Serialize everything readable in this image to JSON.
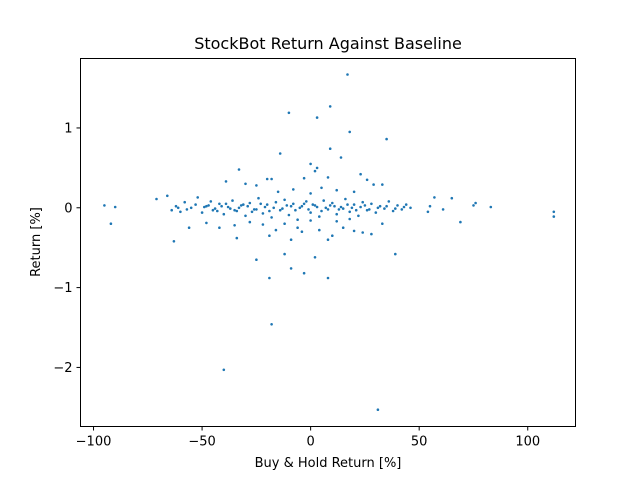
{
  "chart_data": {
    "type": "scatter",
    "title": "StockBot Return Against Baseline",
    "xlabel": "Buy & Hold Return [%]",
    "ylabel": "Return [%]",
    "xlim": [
      -106,
      122
    ],
    "ylim": [
      -2.74,
      1.87
    ],
    "xticks": [
      -100,
      -50,
      0,
      50,
      100
    ],
    "yticks": [
      -2,
      -1,
      0,
      1
    ],
    "xtick_labels": [
      "−100",
      "−50",
      "0",
      "50",
      "100"
    ],
    "ytick_labels": [
      "−2",
      "−1",
      "0",
      "1"
    ],
    "grid": false,
    "marker_color": "#1f77b4",
    "points": [
      {
        "x": 17,
        "y": 1.67
      },
      {
        "x": 9,
        "y": 1.27
      },
      {
        "x": -10,
        "y": 1.19
      },
      {
        "x": 3,
        "y": 1.13
      },
      {
        "x": 18,
        "y": 0.95
      },
      {
        "x": 35,
        "y": 0.86
      },
      {
        "x": 9,
        "y": 0.74
      },
      {
        "x": -14,
        "y": 0.68
      },
      {
        "x": 14,
        "y": 0.63
      },
      {
        "x": 0,
        "y": 0.55
      },
      {
        "x": 3,
        "y": 0.5
      },
      {
        "x": 2,
        "y": 0.46
      },
      {
        "x": -33,
        "y": 0.48
      },
      {
        "x": 23,
        "y": 0.42
      },
      {
        "x": -20,
        "y": 0.36
      },
      {
        "x": -18,
        "y": 0.36
      },
      {
        "x": 26,
        "y": 0.35
      },
      {
        "x": -39,
        "y": 0.33
      },
      {
        "x": 8,
        "y": 0.38
      },
      {
        "x": -3,
        "y": 0.37
      },
      {
        "x": 29,
        "y": 0.29
      },
      {
        "x": 33,
        "y": 0.29
      },
      {
        "x": -25,
        "y": 0.28
      },
      {
        "x": -30,
        "y": 0.3
      },
      {
        "x": -8,
        "y": 0.23
      },
      {
        "x": 5,
        "y": 0.25
      },
      {
        "x": 12,
        "y": 0.22
      },
      {
        "x": 20,
        "y": 0.2
      },
      {
        "x": -15,
        "y": 0.2
      },
      {
        "x": 0,
        "y": 0.18
      },
      {
        "x": -95,
        "y": 0.03
      },
      {
        "x": -90,
        "y": 0.01
      },
      {
        "x": -92,
        "y": -0.2
      },
      {
        "x": -71,
        "y": 0.11
      },
      {
        "x": -66,
        "y": 0.15
      },
      {
        "x": -64,
        "y": -0.03
      },
      {
        "x": -62,
        "y": 0.02
      },
      {
        "x": -60,
        "y": -0.05
      },
      {
        "x": -58,
        "y": 0.07
      },
      {
        "x": -55,
        "y": 0.0
      },
      {
        "x": -52,
        "y": 0.13
      },
      {
        "x": -50,
        "y": -0.06
      },
      {
        "x": -48,
        "y": 0.02
      },
      {
        "x": -46,
        "y": 0.08
      },
      {
        "x": -44,
        "y": -0.01
      },
      {
        "x": -42,
        "y": 0.05
      },
      {
        "x": -40,
        "y": -0.08
      },
      {
        "x": -38,
        "y": 0.01
      },
      {
        "x": -36,
        "y": 0.09
      },
      {
        "x": -34,
        "y": -0.04
      },
      {
        "x": -32,
        "y": 0.03
      },
      {
        "x": -30,
        "y": -0.1
      },
      {
        "x": -28,
        "y": 0.06
      },
      {
        "x": -26,
        "y": -0.02
      },
      {
        "x": -24,
        "y": 0.12
      },
      {
        "x": -22,
        "y": -0.07
      },
      {
        "x": -20,
        "y": 0.04
      },
      {
        "x": -18,
        "y": -0.12
      },
      {
        "x": -16,
        "y": 0.07
      },
      {
        "x": -14,
        "y": -0.03
      },
      {
        "x": -12,
        "y": 0.1
      },
      {
        "x": -10,
        "y": -0.09
      },
      {
        "x": -8,
        "y": 0.05
      },
      {
        "x": -6,
        "y": -0.15
      },
      {
        "x": -4,
        "y": 0.02
      },
      {
        "x": -2,
        "y": 0.08
      },
      {
        "x": 0,
        "y": -0.06
      },
      {
        "x": 2,
        "y": 0.03
      },
      {
        "x": 4,
        "y": -0.11
      },
      {
        "x": 6,
        "y": 0.09
      },
      {
        "x": 8,
        "y": -0.02
      },
      {
        "x": 10,
        "y": 0.06
      },
      {
        "x": 12,
        "y": -0.08
      },
      {
        "x": 14,
        "y": 0.01
      },
      {
        "x": 16,
        "y": 0.11
      },
      {
        "x": 18,
        "y": -0.05
      },
      {
        "x": 20,
        "y": 0.04
      },
      {
        "x": 22,
        "y": -0.1
      },
      {
        "x": 24,
        "y": 0.07
      },
      {
        "x": 26,
        "y": -0.03
      },
      {
        "x": 28,
        "y": 0.05
      },
      {
        "x": 30,
        "y": -0.06
      },
      {
        "x": 32,
        "y": 0.02
      },
      {
        "x": 34,
        "y": -0.01
      },
      {
        "x": 36,
        "y": 0.08
      },
      {
        "x": 38,
        "y": -0.04
      },
      {
        "x": 40,
        "y": 0.03
      },
      {
        "x": 42,
        "y": -0.02
      },
      {
        "x": 44,
        "y": 0.04
      },
      {
        "x": 46,
        "y": 0.0
      },
      {
        "x": -61,
        "y": 0.0
      },
      {
        "x": -57,
        "y": -0.02
      },
      {
        "x": -53,
        "y": 0.04
      },
      {
        "x": -49,
        "y": 0.01
      },
      {
        "x": -45,
        "y": -0.03
      },
      {
        "x": -41,
        "y": 0.02
      },
      {
        "x": -37,
        "y": -0.01
      },
      {
        "x": -33,
        "y": 0.0
      },
      {
        "x": -29,
        "y": 0.02
      },
      {
        "x": -25,
        "y": -0.02
      },
      {
        "x": -21,
        "y": 0.01
      },
      {
        "x": -17,
        "y": 0.0
      },
      {
        "x": -13,
        "y": -0.01
      },
      {
        "x": -9,
        "y": 0.02
      },
      {
        "x": -5,
        "y": 0.0
      },
      {
        "x": -1,
        "y": -0.02
      },
      {
        "x": 3,
        "y": 0.01
      },
      {
        "x": 7,
        "y": 0.0
      },
      {
        "x": 11,
        "y": 0.02
      },
      {
        "x": 15,
        "y": -0.01
      },
      {
        "x": 19,
        "y": 0.0
      },
      {
        "x": 23,
        "y": 0.01
      },
      {
        "x": 27,
        "y": -0.02
      },
      {
        "x": 31,
        "y": 0.0
      },
      {
        "x": 35,
        "y": 0.02
      },
      {
        "x": 39,
        "y": -0.01
      },
      {
        "x": 43,
        "y": 0.01
      },
      {
        "x": -11,
        "y": 0.03
      },
      {
        "x": -7,
        "y": -0.03
      },
      {
        "x": 1,
        "y": 0.04
      },
      {
        "x": 5,
        "y": -0.04
      },
      {
        "x": 9,
        "y": 0.03
      },
      {
        "x": 13,
        "y": -0.02
      },
      {
        "x": -3,
        "y": 0.05
      },
      {
        "x": 17,
        "y": 0.04
      },
      {
        "x": 21,
        "y": -0.03
      },
      {
        "x": 25,
        "y": 0.03
      },
      {
        "x": -19,
        "y": -0.04
      },
      {
        "x": -23,
        "y": 0.05
      },
      {
        "x": -27,
        "y": -0.05
      },
      {
        "x": -31,
        "y": 0.04
      },
      {
        "x": -35,
        "y": -0.03
      },
      {
        "x": -39,
        "y": 0.05
      },
      {
        "x": -43,
        "y": -0.04
      },
      {
        "x": -47,
        "y": 0.03
      },
      {
        "x": -12,
        "y": -0.2
      },
      {
        "x": -6,
        "y": -0.25
      },
      {
        "x": -4,
        "y": -0.3
      },
      {
        "x": -16,
        "y": -0.28
      },
      {
        "x": -22,
        "y": -0.21
      },
      {
        "x": -28,
        "y": -0.18
      },
      {
        "x": -35,
        "y": -0.22
      },
      {
        "x": -42,
        "y": -0.25
      },
      {
        "x": -48,
        "y": -0.19
      },
      {
        "x": -56,
        "y": -0.25
      },
      {
        "x": -63,
        "y": -0.42
      },
      {
        "x": -34,
        "y": -0.38
      },
      {
        "x": -19,
        "y": -0.35
      },
      {
        "x": -9,
        "y": -0.4
      },
      {
        "x": 4,
        "y": -0.28
      },
      {
        "x": 8,
        "y": -0.4
      },
      {
        "x": 10,
        "y": -0.35
      },
      {
        "x": 15,
        "y": -0.25
      },
      {
        "x": 20,
        "y": -0.29
      },
      {
        "x": 24,
        "y": -0.31
      },
      {
        "x": 28,
        "y": -0.33
      },
      {
        "x": 33,
        "y": -0.2
      },
      {
        "x": 12,
        "y": -0.17
      },
      {
        "x": 18,
        "y": -0.14
      },
      {
        "x": 0,
        "y": -0.16
      },
      {
        "x": -25,
        "y": -0.65
      },
      {
        "x": -12,
        "y": -0.58
      },
      {
        "x": 2,
        "y": -0.62
      },
      {
        "x": -9,
        "y": -0.76
      },
      {
        "x": -3,
        "y": -0.82
      },
      {
        "x": -19,
        "y": -0.88
      },
      {
        "x": 8,
        "y": -0.88
      },
      {
        "x": 39,
        "y": -0.58
      },
      {
        "x": -18,
        "y": -1.46
      },
      {
        "x": -40,
        "y": -2.03
      },
      {
        "x": 31,
        "y": -2.53
      },
      {
        "x": 57,
        "y": 0.13
      },
      {
        "x": 55,
        "y": 0.02
      },
      {
        "x": 54,
        "y": -0.05
      },
      {
        "x": 61,
        "y": -0.02
      },
      {
        "x": 65,
        "y": 0.12
      },
      {
        "x": 69,
        "y": -0.18
      },
      {
        "x": 75,
        "y": 0.03
      },
      {
        "x": 76,
        "y": 0.06
      },
      {
        "x": 83,
        "y": 0.01
      },
      {
        "x": 112,
        "y": -0.05
      },
      {
        "x": 112,
        "y": -0.11
      }
    ]
  }
}
